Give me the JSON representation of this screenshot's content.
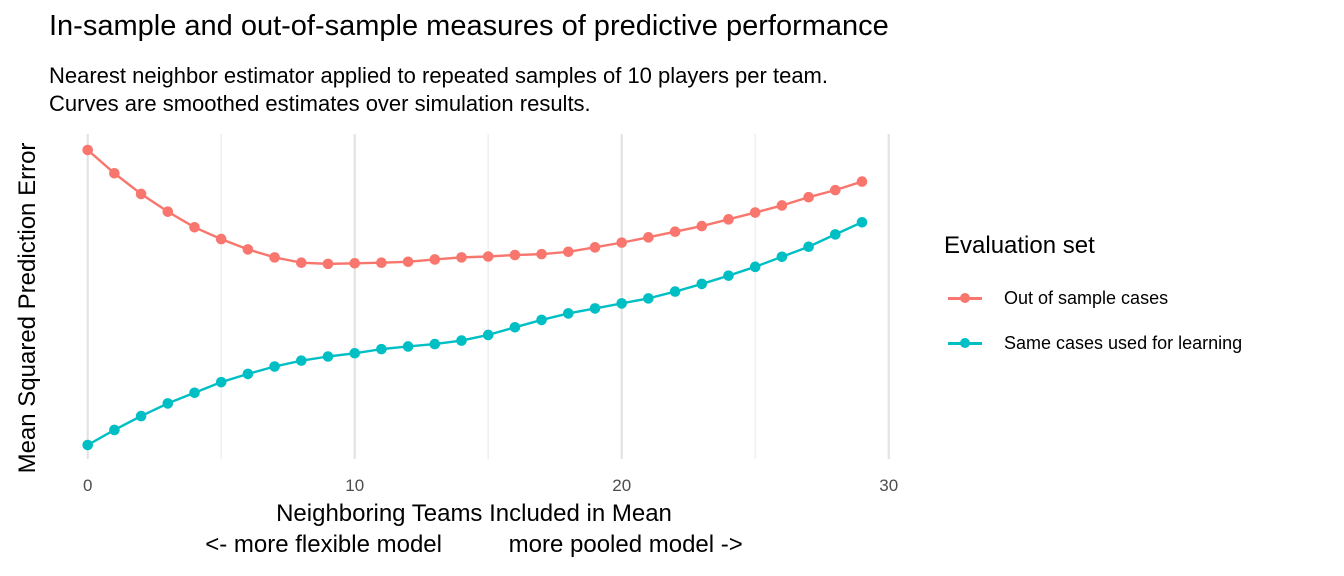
{
  "chart_data": {
    "type": "line",
    "title": "In-sample and out-of-sample measures of predictive performance",
    "subtitle": [
      "Nearest neighbor estimator applied to repeated samples of 10 players per team.",
      "Curves are smoothed estimates over simulation results."
    ],
    "xlabel": "Neighboring Teams Included in Mean\n<- more flexible model          more pooled model ->",
    "ylabel": "Mean Squared Prediction Error",
    "y_units": "relative (no tick labels shown; 0 = lowest plotted value, 1 = highest)",
    "xlim": [
      0,
      30
    ],
    "ylim": [
      0,
      1
    ],
    "x_ticks": [
      0,
      10,
      20,
      30
    ],
    "x_tick_labels": [
      "0",
      "10",
      "20",
      "30"
    ],
    "grid": "vertical major and minor only",
    "legend": {
      "title": "Evaluation set",
      "placement": "right"
    },
    "x": [
      0,
      1,
      2,
      3,
      4,
      5,
      6,
      7,
      8,
      9,
      10,
      11,
      12,
      13,
      14,
      15,
      16,
      17,
      18,
      19,
      20,
      21,
      22,
      23,
      24,
      25,
      26,
      27,
      28,
      29
    ],
    "series": [
      {
        "name": "Out of sample cases",
        "color": "#F8766D",
        "values": [
          1.0,
          0.921,
          0.851,
          0.791,
          0.738,
          0.698,
          0.663,
          0.636,
          0.618,
          0.614,
          0.616,
          0.618,
          0.621,
          0.629,
          0.636,
          0.639,
          0.644,
          0.647,
          0.655,
          0.67,
          0.686,
          0.704,
          0.723,
          0.742,
          0.765,
          0.788,
          0.812,
          0.84,
          0.864,
          0.893
        ]
      },
      {
        "name": "Same cases used for learning",
        "color": "#00BFC4",
        "values": [
          0.0,
          0.051,
          0.098,
          0.141,
          0.177,
          0.213,
          0.241,
          0.266,
          0.286,
          0.3,
          0.311,
          0.325,
          0.334,
          0.342,
          0.354,
          0.373,
          0.399,
          0.424,
          0.446,
          0.463,
          0.48,
          0.497,
          0.52,
          0.546,
          0.574,
          0.604,
          0.638,
          0.672,
          0.714,
          0.755
        ]
      }
    ]
  }
}
